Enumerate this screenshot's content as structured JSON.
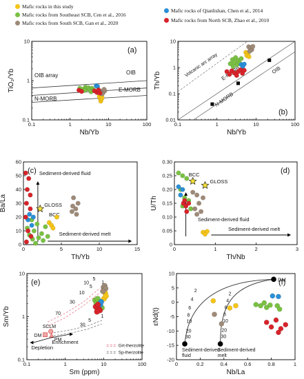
{
  "legend": {
    "items": [
      {
        "label": "Mafic rocks in this study",
        "color": "#f5c518"
      },
      {
        "label": "Mafic rocks from Southeast SCB, Cen et al., 2016",
        "color": "#7ac143"
      },
      {
        "label": "Mafic rocks from South SCB, Gan et al., 2020",
        "color": "#9e8a78"
      },
      {
        "label": "Mafic rocks of Qianlishan, Chen et al., 2014",
        "color": "#2a8fd8"
      },
      {
        "label": "Mafic rocks from North SCB, Zhao et al., 2010",
        "color": "#d8232a"
      }
    ]
  },
  "chart_data": [
    {
      "panel": "(a)",
      "type": "scatter",
      "xlabel": "Nb/Yb",
      "ylabel": "TiO₂/Yb",
      "xscale": "log",
      "yscale": "log",
      "xlim": [
        0.1,
        100
      ],
      "ylim": [
        0.1,
        10
      ],
      "xticks": [
        "0.1",
        "1",
        "10",
        "100"
      ],
      "yticks": [
        "0.1",
        "1",
        "10"
      ],
      "annotations": [
        "OIB array",
        "OIB",
        "E-MORB",
        "N-MORB"
      ],
      "reference_lines": {
        "oib_array_lower": [
          [
            0.1,
            0.65
          ],
          [
            100,
            1.0
          ]
        ],
        "emorb_upper": [
          [
            0.1,
            0.42
          ],
          [
            100,
            0.65
          ]
        ],
        "nmorb_upper": [
          [
            0.1,
            0.28
          ],
          [
            100,
            0.42
          ]
        ]
      },
      "series": [
        {
          "color": "#f5c518",
          "points": [
            [
              6.0,
              0.36
            ],
            [
              6.3,
              0.3
            ],
            [
              6.6,
              0.34
            ],
            [
              5.8,
              0.4
            ],
            [
              6.8,
              0.38
            ]
          ]
        },
        {
          "color": "#7ac143",
          "points": [
            [
              1.8,
              0.64
            ],
            [
              2.2,
              0.6
            ],
            [
              2.5,
              0.68
            ],
            [
              2.8,
              0.62
            ],
            [
              3.0,
              0.66
            ],
            [
              3.3,
              0.6
            ],
            [
              3.7,
              0.64
            ],
            [
              4.1,
              0.58
            ],
            [
              2.4,
              0.56
            ],
            [
              3.5,
              0.52
            ]
          ]
        },
        {
          "color": "#9e8a78",
          "points": [
            [
              6.5,
              0.54
            ],
            [
              7.3,
              0.5
            ],
            [
              8.0,
              0.55
            ],
            [
              7.7,
              0.6
            ],
            [
              6.9,
              0.46
            ]
          ]
        },
        {
          "color": "#2a8fd8",
          "points": [
            [
              4.8,
              0.74
            ],
            [
              5.2,
              0.71
            ]
          ]
        },
        {
          "color": "#d8232a",
          "points": [
            [
              1.7,
              0.57
            ],
            [
              2.0,
              0.53
            ],
            [
              4.3,
              0.55
            ],
            [
              5.0,
              0.5
            ],
            [
              5.5,
              0.58
            ],
            [
              6.0,
              0.48
            ]
          ]
        }
      ]
    },
    {
      "panel": "(b)",
      "type": "scatter",
      "xlabel": "Nb/Yb",
      "ylabel": "Th/Yb",
      "xscale": "log",
      "yscale": "log",
      "xlim": [
        0.1,
        100
      ],
      "ylim": [
        0.01,
        10
      ],
      "xticks": [
        "0.1",
        "1",
        "10",
        "100"
      ],
      "yticks": [
        "0.01",
        "0.1",
        "1",
        "10"
      ],
      "annotations": [
        "Volcanic arc array",
        "OIB",
        "E-MORB",
        "N-MORB"
      ],
      "reference_points": [
        {
          "label": "N-MORB",
          "x": 0.76,
          "y": 0.04
        },
        {
          "label": "E-MORB",
          "x": 3.5,
          "y": 0.25
        },
        {
          "label": "OIB",
          "x": 22,
          "y": 1.9
        }
      ],
      "series": [
        {
          "color": "#f5c518",
          "points": [
            [
              5.5,
              3.8
            ],
            [
              6.2,
              3.5
            ],
            [
              5.8,
              2.9
            ],
            [
              6.6,
              2.6
            ]
          ]
        },
        {
          "color": "#7ac143",
          "points": [
            [
              2.2,
              1.4
            ],
            [
              2.5,
              2.0
            ],
            [
              2.8,
              1.6
            ],
            [
              3.0,
              2.4
            ],
            [
              3.3,
              1.3
            ],
            [
              3.5,
              1.9
            ],
            [
              3.8,
              1.5
            ],
            [
              4.2,
              2.2
            ],
            [
              2.6,
              1.1
            ]
          ]
        },
        {
          "color": "#9e8a78",
          "points": [
            [
              6.5,
              6.2
            ],
            [
              7.2,
              5.6
            ],
            [
              7.8,
              4.8
            ],
            [
              6.9,
              4.2
            ],
            [
              8.3,
              6.4
            ]
          ]
        },
        {
          "color": "#2a8fd8",
          "points": [
            [
              4.2,
              1.3
            ],
            [
              4.6,
              1.1
            ],
            [
              5.0,
              1.35
            ]
          ]
        },
        {
          "color": "#d8232a",
          "points": [
            [
              1.8,
              0.7
            ],
            [
              2.1,
              0.55
            ],
            [
              2.4,
              0.75
            ],
            [
              2.8,
              0.62
            ],
            [
              3.2,
              0.5
            ],
            [
              3.5,
              0.7
            ],
            [
              4.0,
              0.82
            ],
            [
              4.5,
              0.6
            ],
            [
              5.0,
              0.78
            ]
          ]
        }
      ]
    },
    {
      "panel": "(c)",
      "type": "scatter",
      "xlabel": "Th/Yb",
      "ylabel": "Ba/La",
      "xlim": [
        0,
        15
      ],
      "ylim": [
        0,
        60
      ],
      "xticks": [
        "0",
        "5",
        "10",
        "15"
      ],
      "yticks": [
        "0",
        "10",
        "20",
        "30",
        "40",
        "50",
        "60"
      ],
      "annotations": [
        "Sediment-derived fluid",
        "Sediment-derived melt",
        "GLOSS",
        "BCC"
      ],
      "reference_points": [
        {
          "label": "GLOSS",
          "x": 2.2,
          "y": 26
        },
        {
          "label": "BCC",
          "x": 3.0,
          "y": 21
        }
      ],
      "series": [
        {
          "color": "#f5c518",
          "points": [
            [
              3.4,
              16
            ],
            [
              3.7,
              14
            ],
            [
              4.4,
              20
            ],
            [
              3.9,
              12
            ]
          ]
        },
        {
          "color": "#7ac143",
          "points": [
            [
              0.5,
              12
            ],
            [
              1.1,
              18
            ],
            [
              1.4,
              10
            ],
            [
              1.8,
              15
            ],
            [
              2.0,
              5
            ],
            [
              2.4,
              8
            ],
            [
              2.9,
              13
            ],
            [
              3.2,
              6
            ],
            [
              1.2,
              4
            ],
            [
              2.6,
              3
            ],
            [
              1.6,
              1
            ],
            [
              0.8,
              7
            ]
          ]
        },
        {
          "color": "#9e8a78",
          "points": [
            [
              6.5,
              28
            ],
            [
              6.9,
              26
            ],
            [
              7.2,
              30
            ],
            [
              6.6,
              34
            ],
            [
              7.0,
              22
            ],
            [
              6.4,
              24
            ]
          ]
        },
        {
          "color": "#2a8fd8",
          "points": [
            [
              0.6,
              18
            ],
            [
              1.1,
              14
            ],
            [
              0.8,
              22
            ],
            [
              1.3,
              20
            ]
          ]
        },
        {
          "color": "#d8232a",
          "points": [
            [
              0.3,
              52
            ],
            [
              0.7,
              48
            ],
            [
              0.5,
              40
            ],
            [
              0.9,
              36
            ],
            [
              0.4,
              30
            ],
            [
              0.9,
              26
            ],
            [
              0.3,
              20
            ],
            [
              0.6,
              10
            ],
            [
              1.0,
              6
            ],
            [
              0.4,
              2
            ]
          ]
        }
      ]
    },
    {
      "panel": "(d)",
      "type": "scatter",
      "xlabel": "Th/Nb",
      "ylabel": "U/Th",
      "xlim": [
        0,
        3
      ],
      "ylim": [
        0,
        0.3
      ],
      "xticks": [
        "0",
        "1",
        "2",
        "3"
      ],
      "yticks": [
        "0",
        "0.05",
        "0.10",
        "0.15",
        "0.20",
        "0.25",
        "0.30"
      ],
      "annotations": [
        "Sediment-derived fluid",
        "Sediment-derived melt",
        "BCC",
        "GLOSS"
      ],
      "reference_points": [
        {
          "label": "BCC",
          "x": 0.45,
          "y": 0.23
        },
        {
          "label": "GLOSS",
          "x": 0.75,
          "y": 0.215
        }
      ],
      "series": [
        {
          "color": "#f5c518",
          "points": [
            [
              0.7,
              0.045
            ],
            [
              0.75,
              0.038
            ],
            [
              0.8,
              0.048
            ]
          ]
        },
        {
          "color": "#7ac143",
          "points": [
            [
              0.1,
              0.26
            ],
            [
              0.2,
              0.25
            ],
            [
              0.3,
              0.24
            ],
            [
              0.15,
              0.2
            ],
            [
              0.25,
              0.17
            ],
            [
              0.35,
              0.16
            ],
            [
              0.4,
              0.13
            ],
            [
              0.2,
              0.14
            ]
          ]
        },
        {
          "color": "#9e8a78",
          "points": [
            [
              0.45,
              0.19
            ],
            [
              0.55,
              0.18
            ],
            [
              0.6,
              0.15
            ],
            [
              0.5,
              0.13
            ],
            [
              0.65,
              0.12
            ],
            [
              0.7,
              0.17
            ],
            [
              0.55,
              0.11
            ]
          ]
        },
        {
          "color": "#2a8fd8",
          "points": [
            [
              0.1,
              0.21
            ],
            [
              0.15,
              0.18
            ],
            [
              0.2,
              0.2
            ]
          ]
        },
        {
          "color": "#d8232a",
          "points": [
            [
              0.22,
              0.15
            ],
            [
              0.28,
              0.14
            ],
            [
              0.3,
              0.12
            ],
            [
              0.35,
              0.15
            ],
            [
              0.25,
              0.16
            ]
          ]
        }
      ]
    },
    {
      "panel": "(e)",
      "type": "scatter",
      "xlabel": "Sm (ppm)",
      "ylabel": "Sm/Yb",
      "xscale": "log",
      "yscale": "log",
      "xlim": [
        0.1,
        100
      ],
      "ylim": [
        0.1,
        10
      ],
      "xticks": [
        "0.1",
        "1",
        "10",
        "100"
      ],
      "yticks": [
        "0.1",
        "1",
        "10"
      ],
      "annotations": [
        "DM",
        "SCLM",
        "PM",
        "Depletion",
        "Enrichment",
        "Grt-lherzolite",
        "Sp-lherzolite"
      ],
      "melting_labels": [
        "1",
        "5",
        "10",
        "30",
        "70"
      ],
      "reference_points": [
        {
          "label": "DM",
          "x": 0.3,
          "y": 0.38
        },
        {
          "label": "SCLM",
          "x": 0.42,
          "y": 0.42
        },
        {
          "label": "PM",
          "x": 0.44,
          "y": 0.36
        }
      ],
      "series": [
        {
          "color": "#f5c518",
          "points": [
            [
              10.5,
              4.2
            ],
            [
              11.0,
              3.5
            ],
            [
              10.2,
              2.6
            ],
            [
              11.5,
              3.0
            ]
          ]
        },
        {
          "color": "#7ac143",
          "points": [
            [
              6.0,
              2.4
            ],
            [
              6.5,
              2.0
            ],
            [
              7.0,
              2.6
            ],
            [
              7.8,
              1.8
            ],
            [
              8.5,
              2.2
            ],
            [
              9.0,
              1.6
            ],
            [
              6.8,
              1.5
            ]
          ]
        },
        {
          "color": "#9e8a78",
          "points": [
            [
              10.0,
              4.8
            ],
            [
              10.6,
              5.2
            ],
            [
              11.2,
              4.5
            ],
            [
              9.6,
              3.9
            ]
          ]
        },
        {
          "color": "#2a8fd8",
          "points": [
            [
              8.2,
              1.9
            ],
            [
              8.6,
              2.2
            ]
          ]
        },
        {
          "color": "#d8232a",
          "points": [
            [
              6.2,
              1.7
            ],
            [
              7.1,
              1.9
            ],
            [
              7.5,
              1.5
            ],
            [
              8.0,
              1.4
            ],
            [
              6.7,
              1.3
            ]
          ]
        }
      ]
    },
    {
      "panel": "(f)",
      "type": "scatter",
      "xlabel": "Nb/La",
      "ylabel": "εNd(t)",
      "xlim": [
        0,
        1
      ],
      "ylim": [
        -20,
        10
      ],
      "xticks": [
        "0",
        "0.2",
        "0.4",
        "0.6",
        "0.8",
        "1"
      ],
      "yticks": [
        "-20",
        "-15",
        "-10",
        "-5",
        "0",
        "5",
        "10"
      ],
      "annotations": [
        "DM",
        "Sediment-derived fluid",
        "Sediment-derived melt"
      ],
      "mixing_labels": [
        "2",
        "4",
        "6",
        "8",
        "10",
        "20",
        "30"
      ],
      "end_members": [
        {
          "label": "DM",
          "x": 0.82,
          "y": 8.0
        },
        {
          "label": "Sediment-derived fluid",
          "x": 0.07,
          "y": -14.5
        },
        {
          "label": "Sediment-derived melt",
          "x": 0.37,
          "y": -14.5
        }
      ],
      "series": [
        {
          "color": "#f5c518",
          "points": [
            [
              0.31,
              0.5
            ],
            [
              0.45,
              -2.0
            ],
            [
              0.5,
              -1.2
            ]
          ]
        },
        {
          "color": "#7ac143",
          "points": [
            [
              0.67,
              -0.8
            ],
            [
              0.71,
              -1.2
            ],
            [
              0.74,
              -0.2
            ],
            [
              0.76,
              -1.8
            ],
            [
              0.79,
              -1.0
            ],
            [
              0.85,
              -1.2
            ],
            [
              0.87,
              -2.4
            ]
          ]
        },
        {
          "color": "#9e8a78",
          "points": [
            [
              0.32,
              -4.2
            ],
            [
              0.38,
              -7.5
            ]
          ]
        },
        {
          "color": "#2a8fd8",
          "points": [
            [
              0.81,
              2.2
            ],
            [
              0.86,
              2.0
            ]
          ]
        },
        {
          "color": "#d8232a",
          "points": [
            [
              0.76,
              -7.0
            ],
            [
              0.8,
              -8.6
            ],
            [
              0.84,
              -6.2
            ],
            [
              0.88,
              -9.2
            ],
            [
              0.92,
              -7.8
            ],
            [
              0.86,
              -10.5
            ]
          ]
        }
      ]
    }
  ]
}
